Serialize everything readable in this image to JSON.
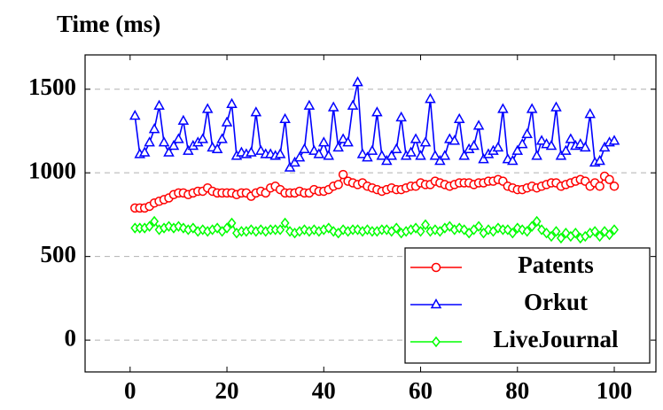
{
  "chart_data": {
    "type": "line",
    "y_label": "Time (ms)",
    "x": [
      1,
      2,
      3,
      4,
      5,
      6,
      7,
      8,
      9,
      10,
      11,
      12,
      13,
      14,
      15,
      16,
      17,
      18,
      19,
      20,
      21,
      22,
      23,
      24,
      25,
      26,
      27,
      28,
      29,
      30,
      31,
      32,
      33,
      34,
      35,
      36,
      37,
      38,
      39,
      40,
      41,
      42,
      43,
      44,
      45,
      46,
      47,
      48,
      49,
      50,
      51,
      52,
      53,
      54,
      55,
      56,
      57,
      58,
      59,
      60,
      61,
      62,
      63,
      64,
      65,
      66,
      67,
      68,
      69,
      70,
      71,
      72,
      73,
      74,
      75,
      76,
      77,
      78,
      79,
      80,
      81,
      82,
      83,
      84,
      85,
      86,
      87,
      88,
      89,
      90,
      91,
      92,
      93,
      94,
      95,
      96,
      97,
      98,
      99,
      100
    ],
    "series": [
      {
        "name": "Patents",
        "color": "#ff0000",
        "marker": "circle",
        "values": [
          790,
          790,
          790,
          800,
          820,
          830,
          840,
          850,
          870,
          880,
          880,
          870,
          880,
          890,
          890,
          910,
          890,
          880,
          880,
          880,
          880,
          870,
          880,
          880,
          860,
          880,
          890,
          880,
          910,
          920,
          900,
          880,
          880,
          880,
          890,
          880,
          880,
          900,
          890,
          890,
          900,
          920,
          930,
          990,
          950,
          940,
          930,
          940,
          920,
          910,
          900,
          890,
          900,
          910,
          900,
          900,
          910,
          920,
          920,
          940,
          930,
          930,
          950,
          940,
          930,
          920,
          930,
          940,
          940,
          940,
          930,
          940,
          940,
          950,
          950,
          960,
          950,
          920,
          910,
          900,
          900,
          910,
          920,
          910,
          920,
          930,
          940,
          940,
          920,
          930,
          940,
          950,
          960,
          950,
          920,
          940,
          920,
          980,
          960,
          920
        ]
      },
      {
        "name": "Orkut",
        "color": "#0000ff",
        "marker": "triangle",
        "values": [
          1340,
          1110,
          1120,
          1180,
          1260,
          1400,
          1180,
          1120,
          1160,
          1200,
          1310,
          1130,
          1160,
          1180,
          1200,
          1380,
          1150,
          1140,
          1200,
          1300,
          1410,
          1100,
          1120,
          1110,
          1120,
          1360,
          1130,
          1110,
          1110,
          1100,
          1110,
          1320,
          1030,
          1060,
          1090,
          1140,
          1400,
          1130,
          1110,
          1180,
          1100,
          1390,
          1150,
          1200,
          1180,
          1400,
          1540,
          1110,
          1090,
          1130,
          1360,
          1100,
          1070,
          1100,
          1140,
          1330,
          1100,
          1120,
          1200,
          1100,
          1180,
          1440,
          1100,
          1070,
          1100,
          1200,
          1190,
          1320,
          1100,
          1140,
          1160,
          1280,
          1080,
          1110,
          1130,
          1150,
          1380,
          1080,
          1070,
          1130,
          1170,
          1230,
          1380,
          1100,
          1190,
          1170,
          1160,
          1390,
          1100,
          1130,
          1200,
          1160,
          1170,
          1150,
          1350,
          1060,
          1070,
          1150,
          1180,
          1190
        ]
      },
      {
        "name": "LiveJournal",
        "color": "#00ff00",
        "marker": "diamond",
        "values": [
          670,
          670,
          670,
          680,
          710,
          660,
          670,
          680,
          670,
          680,
          670,
          660,
          670,
          650,
          660,
          650,
          660,
          670,
          650,
          670,
          700,
          640,
          650,
          650,
          660,
          650,
          660,
          650,
          660,
          660,
          660,
          700,
          650,
          640,
          650,
          660,
          650,
          660,
          650,
          660,
          670,
          650,
          640,
          660,
          650,
          660,
          660,
          650,
          660,
          650,
          650,
          660,
          660,
          650,
          670,
          640,
          650,
          660,
          670,
          650,
          690,
          650,
          660,
          650,
          670,
          680,
          660,
          670,
          660,
          640,
          660,
          680,
          640,
          660,
          650,
          670,
          660,
          660,
          640,
          670,
          660,
          650,
          680,
          710,
          660,
          640,
          620,
          650,
          610,
          640,
          620,
          640,
          610,
          620,
          640,
          650,
          620,
          650,
          630,
          660
        ]
      }
    ],
    "xlim": [
      -9.3,
      108.6
    ],
    "ylim": [
      -190,
      1705
    ],
    "xticks": [
      0,
      20,
      40,
      60,
      80,
      100
    ],
    "yticks": [
      0,
      500,
      1000,
      1500
    ],
    "grid": true,
    "legend": "south east"
  }
}
